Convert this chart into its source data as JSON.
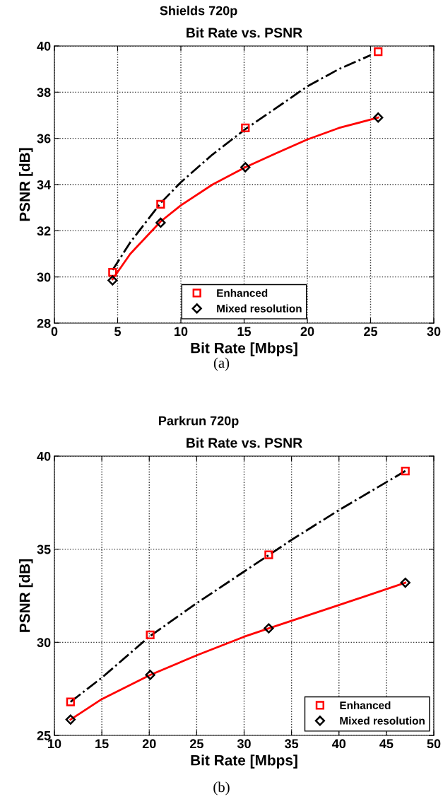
{
  "chart_data": [
    {
      "type": "line",
      "title": "Shields 720p",
      "subtitle": "Bit Rate vs. PSNR",
      "xlabel": "Bit Rate [Mbps]",
      "ylabel": "PSNR [dB]",
      "xlim": [
        0,
        30
      ],
      "xticks": [
        0,
        5,
        10,
        15,
        20,
        25,
        30
      ],
      "ylim": [
        28,
        40
      ],
      "yticks": [
        28,
        30,
        32,
        34,
        36,
        38,
        40
      ],
      "grid": true,
      "legend": "bottom",
      "annotations": [
        "(a)"
      ],
      "series": [
        {
          "color": "#000000",
          "line_style": "dashdot",
          "marker": "none",
          "x": [
            4.6,
            6,
            8.4,
            10,
            12.5,
            15.1,
            17.5,
            20,
            22.5,
            25
          ],
          "values": [
            30.3,
            31.5,
            33.2,
            34.1,
            35.3,
            36.4,
            37.3,
            38.25,
            39.0,
            39.6
          ]
        },
        {
          "color": "#ff0000",
          "line_style": "solid",
          "marker": "none",
          "x": [
            4.6,
            6,
            8.4,
            10,
            12.5,
            15.1,
            17.5,
            20,
            22.5,
            25.6
          ],
          "values": [
            29.9,
            31.0,
            32.4,
            33.1,
            34.0,
            34.75,
            35.35,
            35.95,
            36.45,
            36.9
          ]
        },
        {
          "type": "scatter",
          "name": "Enhanced",
          "color": "#ff0000",
          "marker": "square",
          "x": [
            4.6,
            8.4,
            15.1,
            25.6
          ],
          "values": [
            30.2,
            33.15,
            36.45,
            39.75
          ]
        },
        {
          "type": "scatter",
          "name": "Mixed resolution",
          "color": "#000000",
          "marker": "diamond",
          "x": [
            4.6,
            8.4,
            15.1,
            25.6
          ],
          "values": [
            29.85,
            32.35,
            34.75,
            36.9
          ]
        }
      ]
    },
    {
      "type": "line",
      "title": "Parkrun 720p",
      "subtitle": "Bit Rate vs. PSNR",
      "xlabel": "Bit Rate [Mbps]",
      "ylabel": "PSNR [dB]",
      "xlim": [
        10,
        50
      ],
      "xticks": [
        10,
        15,
        20,
        25,
        30,
        35,
        40,
        45,
        50
      ],
      "ylim": [
        25,
        40
      ],
      "yticks": [
        25,
        30,
        35,
        40
      ],
      "grid": true,
      "legend": "bottom right",
      "annotations": [
        "(b)"
      ],
      "series": [
        {
          "color": "#000000",
          "line_style": "dashdot",
          "marker": "none",
          "x": [
            11.7,
            15,
            20,
            25,
            30,
            35,
            40,
            47
          ],
          "values": [
            26.8,
            28.1,
            30.3,
            32.1,
            33.8,
            35.5,
            37.1,
            39.2
          ]
        },
        {
          "color": "#ff0000",
          "line_style": "solid",
          "marker": "none",
          "x": [
            11.7,
            15,
            20.1,
            25,
            30,
            32.6,
            40,
            47
          ],
          "values": [
            25.85,
            26.95,
            28.25,
            29.3,
            30.3,
            30.75,
            32.0,
            33.2
          ]
        },
        {
          "type": "scatter",
          "name": "Enhanced",
          "color": "#ff0000",
          "marker": "square",
          "x": [
            11.7,
            20.1,
            32.6,
            47.0
          ],
          "values": [
            26.8,
            30.4,
            34.7,
            39.2
          ]
        },
        {
          "type": "scatter",
          "name": "Mixed resolution",
          "color": "#000000",
          "marker": "diamond",
          "x": [
            11.7,
            20.1,
            32.6,
            47.0
          ],
          "values": [
            25.85,
            28.25,
            30.75,
            33.2
          ]
        }
      ]
    }
  ]
}
